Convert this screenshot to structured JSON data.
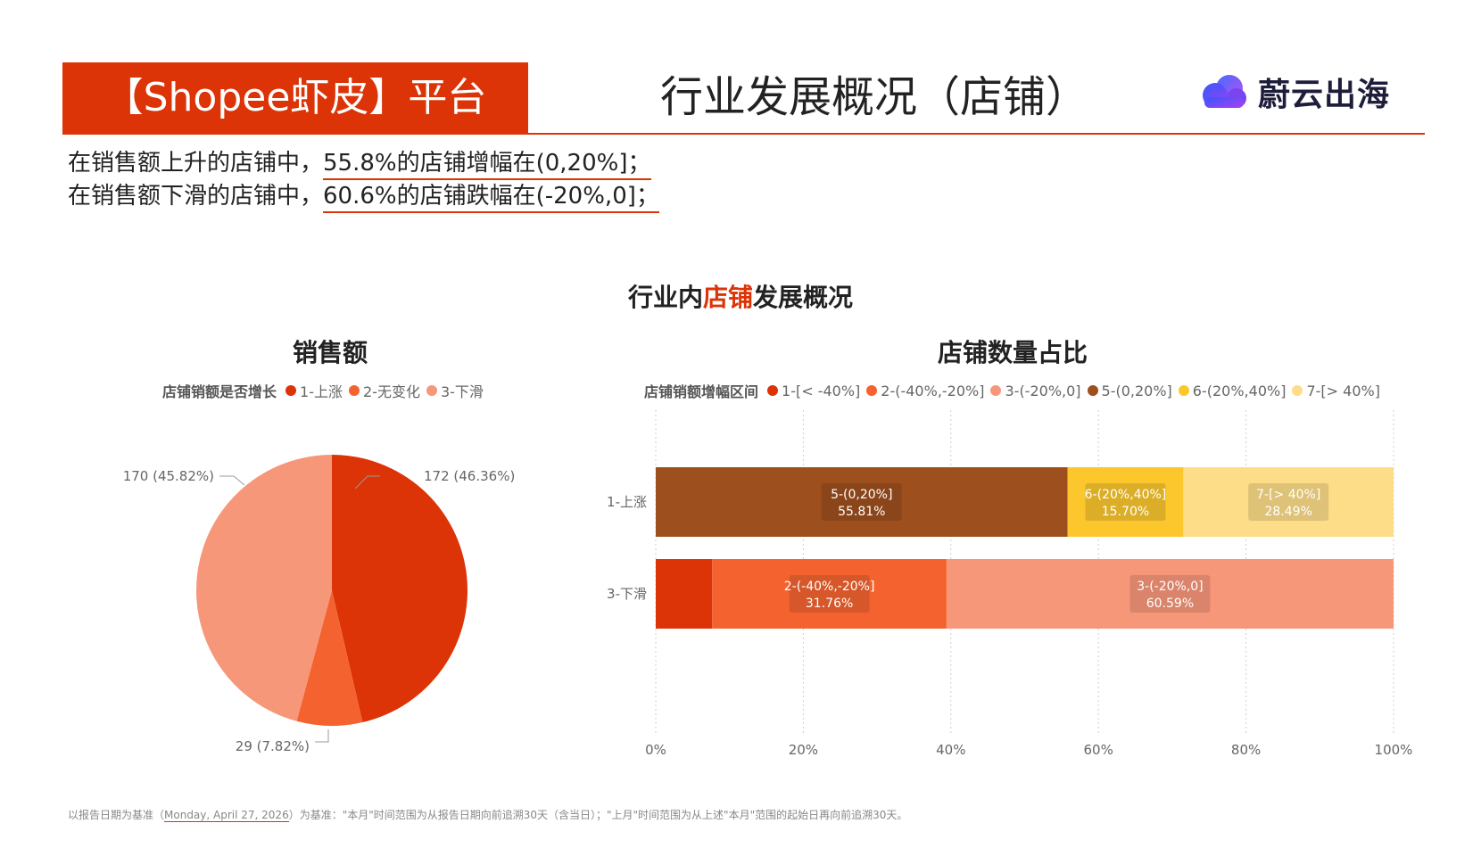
{
  "header": {
    "platform": "【Shopee虾皮】平台",
    "title": "行业发展概况（店铺）",
    "logo_text": "蔚云出海",
    "accent_color": "#dc3307"
  },
  "summary": [
    {
      "prefix": "在销售额上升的店铺中，",
      "highlight": "55.8%的店铺增幅在(0,20%]；"
    },
    {
      "prefix": "在销售额下滑的店铺中，",
      "highlight": "60.6%的店铺跌幅在(-20%,0]；"
    }
  ],
  "section": {
    "before": "行业内",
    "accent": "店铺",
    "after": "发展概况"
  },
  "chart_data": [
    {
      "type": "pie",
      "title": "销售额",
      "legend_title": "店铺销额是否增长",
      "legend_position": "top",
      "slices": [
        {
          "name": "1-上涨",
          "value": 172,
          "percent": "46.36%",
          "label": "172 (46.36%)",
          "color": "#dc3307"
        },
        {
          "name": "2-无变化",
          "value": 29,
          "percent": "7.82%",
          "label": "29 (7.82%)",
          "color": "#f4632f"
        },
        {
          "name": "3-下滑",
          "value": 170,
          "percent": "45.82%",
          "label": "170 (45.82%)",
          "color": "#f7977a"
        }
      ]
    },
    {
      "type": "bar",
      "orientation": "horizontal",
      "stacked": "100%",
      "title": "店铺数量占比",
      "legend_title": "店铺销额增幅区间",
      "legend_position": "top",
      "categories": [
        "1-上涨",
        "3-下滑"
      ],
      "xlim": [
        0,
        100
      ],
      "x_ticks": [
        "0%",
        "20%",
        "40%",
        "60%",
        "80%",
        "100%"
      ],
      "grid": "vertical-dotted",
      "series": [
        {
          "name": "1-[< -40%]",
          "color": "#dc3307",
          "values": [
            0,
            7.65
          ]
        },
        {
          "name": "2-(-40%,-20%]",
          "color": "#f4632f",
          "values": [
            0,
            31.76
          ]
        },
        {
          "name": "3-(-20%,0]",
          "color": "#f7977a",
          "values": [
            0,
            60.59
          ]
        },
        {
          "name": "5-(0,20%]",
          "color": "#9e4f1e",
          "values": [
            55.81,
            0
          ]
        },
        {
          "name": "6-(20%,40%]",
          "color": "#fbc72d",
          "values": [
            15.7,
            0
          ]
        },
        {
          "name": "7-[> 40%]",
          "color": "#fddd88",
          "values": [
            28.49,
            0
          ]
        }
      ],
      "data_labels": [
        {
          "category": "1-上涨",
          "series": "5-(0,20%]",
          "text": "5-(0,20%]",
          "value": "55.81%"
        },
        {
          "category": "1-上涨",
          "series": "6-(20%,40%]",
          "text": "6-(20%,40%]",
          "value": "15.70%"
        },
        {
          "category": "1-上涨",
          "series": "7-[> 40%]",
          "text": "7-[> 40%]",
          "value": "28.49%"
        },
        {
          "category": "3-下滑",
          "series": "2-(-40%,-20%]",
          "text": "2-(-40%,-20%]",
          "value": "31.76%"
        },
        {
          "category": "3-下滑",
          "series": "3-(-20%,0]",
          "text": "3-(-20%,0]",
          "value": "60.59%"
        }
      ]
    }
  ],
  "footnote": {
    "before": "以报告日期为基准（",
    "date": "Monday, April 27, 2026",
    "after": "）为基准：\"本月\"时间范围为从报告日期向前追溯30天（含当日）；\"上月\"时间范围为从上述\"本月\"范围的起始日再向前追溯30天。"
  }
}
